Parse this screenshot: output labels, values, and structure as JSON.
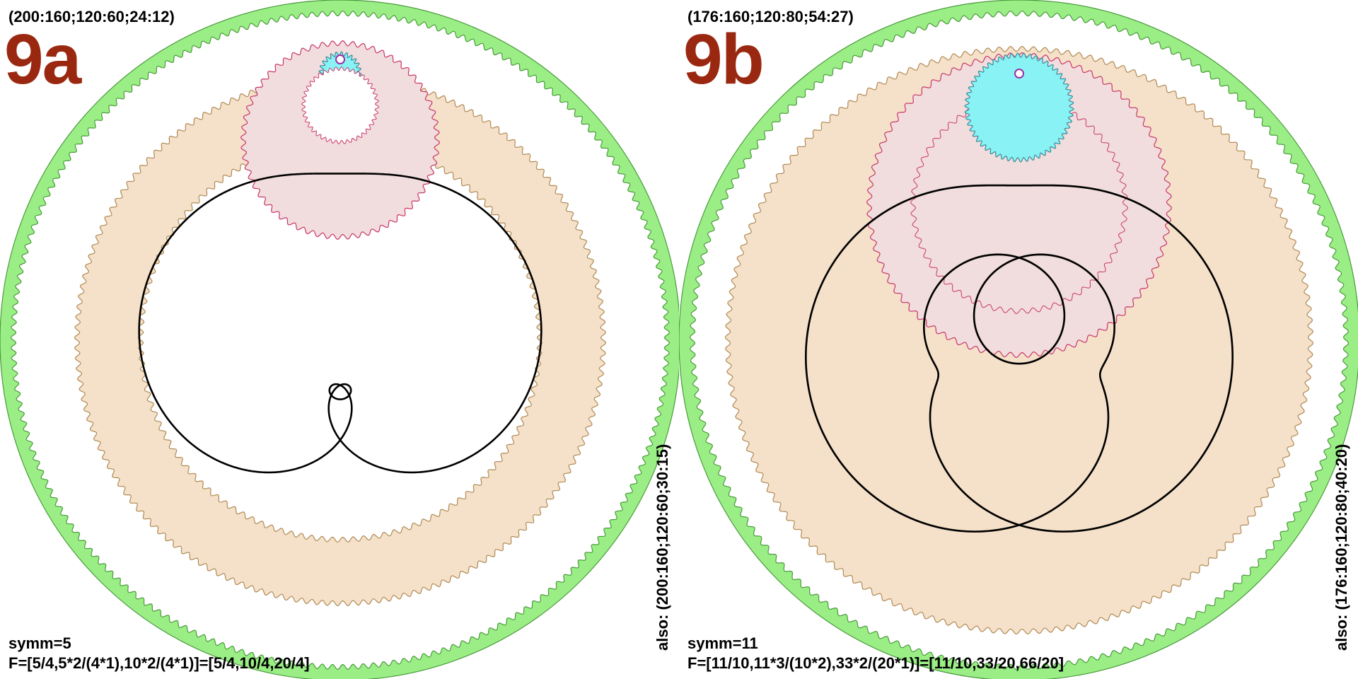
{
  "panels": [
    {
      "label": "9a",
      "params": "(200:160;120:60;24:12)",
      "symm": "symm=5",
      "formula": "F=[5/4,5*2/(4*1),10*2/(4*1)]=[5/4,10/4,20/4]",
      "also": "also: (200:160;120:60;30:15)",
      "gears": {
        "outer_ring_teeth": 200,
        "big_ring_teeth": 160,
        "mid_ring_teeth": 120,
        "mid_gear_teeth": 60,
        "small_gear_teeth": 24,
        "small_gear_inner": 12
      },
      "curve": {
        "symmetry": 5,
        "frequencies": [
          1.25,
          2.5,
          5.0
        ]
      }
    },
    {
      "label": "9b",
      "params": "(176:160;120:80;54:27)",
      "symm": "symm=11",
      "formula": "F=[11/10,11*3/(10*2),33*2/(20*1)]=[11/10,33/20,66/20]",
      "also": "also: (176:160;120:80;40:20)",
      "gears": {
        "outer_ring_teeth": 176,
        "big_ring_teeth": 160,
        "mid_ring_teeth": 120,
        "mid_gear_teeth": 80,
        "small_gear_teeth": 54,
        "small_gear_inner": 27
      },
      "curve": {
        "symmetry": 11,
        "frequencies": [
          1.1,
          1.65,
          3.3
        ]
      }
    }
  ],
  "colors": {
    "label_text": "#9a2810",
    "outer_ring_fill": "#9bee86",
    "outer_ring_stroke": "#4a9a3c",
    "beige_fill": "#f5e1c9",
    "beige_stroke": "#b08a55",
    "pink_fill": "#f1dddd",
    "pink_stroke": "#c8366a",
    "cyan_fill": "#88f2f4",
    "cyan_stroke": "#3a8a9a",
    "pen_fill": "#ffffff",
    "pen_stroke": "#9b2fa7",
    "curve_stroke": "#000000"
  }
}
